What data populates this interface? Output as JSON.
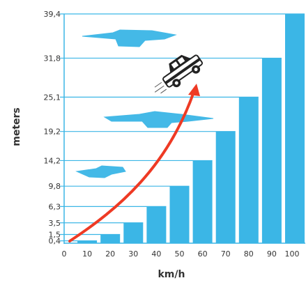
{
  "chart_data": {
    "type": "bar",
    "categories": [
      "10",
      "20",
      "30",
      "40",
      "50",
      "60",
      "70",
      "80",
      "90",
      "100"
    ],
    "values": [
      0.4,
      1.5,
      3.5,
      6.3,
      9.8,
      14.2,
      19.2,
      25.1,
      31.8,
      39.4
    ],
    "x_axis_start_label": "0",
    "y_tick_labels": [
      "0,4",
      "1,5",
      "3,5",
      "6,3",
      "9,8",
      "14,2",
      "19,2",
      "25,1",
      "31,8",
      "39,4"
    ],
    "xlabel": "km/h",
    "ylabel": "meters",
    "ylim": [
      0,
      39.4
    ],
    "grid": true,
    "bar_color": "#3bb6e6",
    "line_color": "#3bb6e6",
    "arrow_color": "#ee3a24",
    "illustration": "car-icon"
  }
}
